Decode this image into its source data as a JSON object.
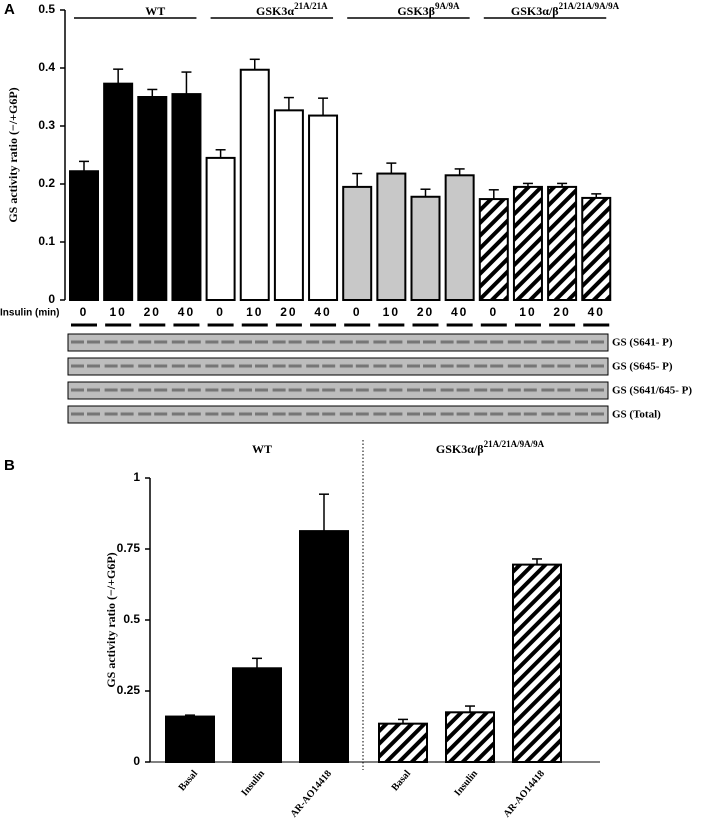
{
  "chart_data": [
    {
      "type": "bar",
      "panel": "A",
      "ylabel": "GS activity ratio (−/+G6P)",
      "xlabel": "Insulin (min)",
      "ylim": [
        0,
        0.5
      ],
      "yticks": [
        0,
        0.1,
        0.2,
        0.3,
        0.4,
        0.5
      ],
      "groups": [
        {
          "name": "WT",
          "sup": null,
          "fill": "#000000",
          "categories": [
            "0",
            "10",
            "20",
            "40"
          ],
          "values": [
            0.222,
            0.373,
            0.35,
            0.355
          ],
          "errors": [
            0.017,
            0.025,
            0.013,
            0.038
          ]
        },
        {
          "name": "GSK3α",
          "sup": "21A/21A",
          "fill": "#ffffff",
          "categories": [
            "0",
            "10",
            "20",
            "40"
          ],
          "values": [
            0.245,
            0.397,
            0.327,
            0.318
          ],
          "errors": [
            0.014,
            0.018,
            0.022,
            0.03
          ]
        },
        {
          "name": "GSK3β",
          "sup": "9A/9A",
          "fill": "#c8c8c8",
          "categories": [
            "0",
            "10",
            "20",
            "40"
          ],
          "values": [
            0.195,
            0.218,
            0.178,
            0.215
          ],
          "errors": [
            0.023,
            0.018,
            0.013,
            0.011
          ]
        },
        {
          "name": "GSK3α/β",
          "sup": "21A/21A/9A/9A",
          "fill": "hatch",
          "categories": [
            "0",
            "10",
            "20",
            "40"
          ],
          "values": [
            0.174,
            0.195,
            0.195,
            0.176
          ],
          "errors": [
            0.016,
            0.006,
            0.006,
            0.007
          ]
        }
      ]
    },
    {
      "type": "bar",
      "panel": "B",
      "ylabel": "GS activity ratio (−/+G6P)",
      "ylim": [
        0,
        1
      ],
      "yticks": [
        0,
        0.25,
        0.5,
        0.75,
        1
      ],
      "groups": [
        {
          "name": "WT",
          "sup": null,
          "fill": "#000000",
          "categories": [
            "Basal",
            "Insulin",
            "AR-AO14418"
          ],
          "values": [
            0.16,
            0.33,
            0.813
          ],
          "errors": [
            0.005,
            0.035,
            0.13
          ]
        },
        {
          "name": "GSK3α/β",
          "sup": "21A/21A/9A/9A",
          "fill": "hatch",
          "categories": [
            "Basal",
            "Insulin",
            "AR-AO14418"
          ],
          "values": [
            0.135,
            0.175,
            0.695
          ],
          "errors": [
            0.015,
            0.022,
            0.02
          ]
        }
      ]
    }
  ],
  "blots": [
    "GS (S641- P)",
    "GS (S645- P)",
    "GS (S641/645- P)",
    "GS (Total)"
  ]
}
